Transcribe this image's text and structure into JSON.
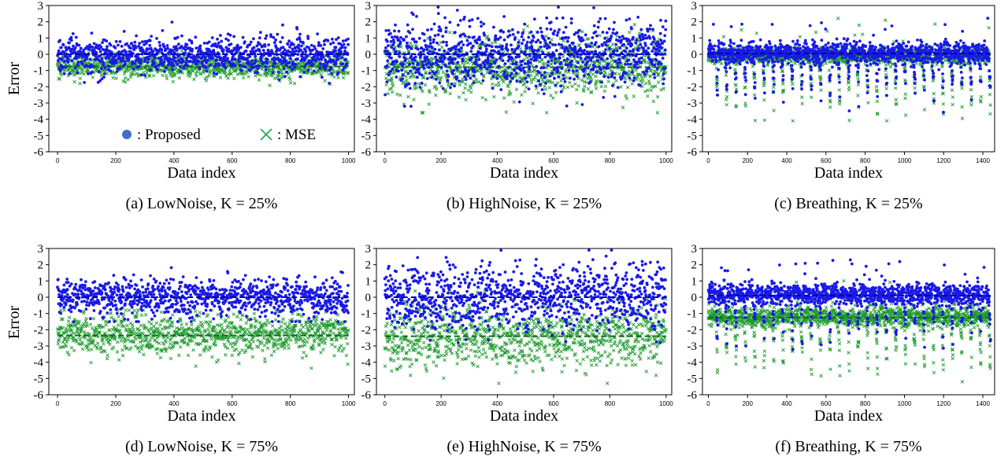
{
  "colors": {
    "proposed": "#1a1ae6",
    "mse": "#1e9a2e",
    "legend_dot": "#3f6fc8",
    "legend_x": "#1aa64a",
    "axis": "#000000"
  },
  "legend": {
    "proposed_label": ": Proposed",
    "mse_label": ": MSE"
  },
  "ylabel": "Error",
  "xlabel": "Data index",
  "chart_data": [
    {
      "id": "a",
      "type": "scatter",
      "title": "(a) LowNoise, K = 25%",
      "xlabel": "Data index",
      "ylabel": "Error",
      "xlim": [
        -30,
        1020
      ],
      "ylim": [
        -6,
        3
      ],
      "xticks": [
        0,
        200,
        400,
        600,
        800,
        1000
      ],
      "yticks": [
        -6,
        -5,
        -4,
        -3,
        -2,
        -1,
        0,
        1,
        2,
        3
      ],
      "pattern": "uniform",
      "n": 1000,
      "series": [
        {
          "name": "Proposed",
          "mean": 0.0,
          "spread": 0.55,
          "ymin": -2.5,
          "ymax": 2.8,
          "line": 0.0
        },
        {
          "name": "MSE",
          "mean": -0.75,
          "spread": 0.35,
          "ymin": -2.1,
          "ymax": 0.6,
          "line": -0.75
        }
      ]
    },
    {
      "id": "b",
      "type": "scatter",
      "title": "(b) HighNoise, K = 25%",
      "xlabel": "Data index",
      "ylabel": "Error",
      "xlim": [
        -30,
        1020
      ],
      "ylim": [
        -6,
        3
      ],
      "xticks": [
        0,
        200,
        400,
        600,
        800,
        1000
      ],
      "yticks": [
        -6,
        -5,
        -4,
        -3,
        -2,
        -1,
        0,
        1,
        2,
        3
      ],
      "pattern": "uniform",
      "n": 1000,
      "series": [
        {
          "name": "Proposed",
          "mean": 0.0,
          "spread": 1.0,
          "ymin": -3.2,
          "ymax": 2.9,
          "line": 0.0
        },
        {
          "name": "MSE",
          "mean": -0.8,
          "spread": 0.9,
          "ymin": -3.6,
          "ymax": 2.8,
          "line": -0.8
        }
      ]
    },
    {
      "id": "c",
      "type": "scatter",
      "title": "(c) Breathing, K = 25%",
      "xlabel": "Data index",
      "ylabel": "Error",
      "xlim": [
        -30,
        1460
      ],
      "ylim": [
        -6,
        3
      ],
      "xticks": [
        0,
        200,
        400,
        600,
        800,
        1000,
        1200,
        1400
      ],
      "yticks": [
        -6,
        -5,
        -4,
        -3,
        -2,
        -1,
        0,
        1,
        2,
        3
      ],
      "pattern": "breathing",
      "n": 1440,
      "series": [
        {
          "name": "Proposed",
          "mean": 0.1,
          "spread": 0.45,
          "ymin": -3.8,
          "ymax": 2.6,
          "line": 0.05
        },
        {
          "name": "MSE",
          "mean": -0.1,
          "spread": 0.35,
          "ymin": -4.1,
          "ymax": 2.8,
          "line": -0.05
        }
      ]
    },
    {
      "id": "d",
      "type": "scatter",
      "title": "(d) LowNoise, K = 75%",
      "xlabel": "Data index",
      "ylabel": "Error",
      "xlim": [
        -30,
        1020
      ],
      "ylim": [
        -6,
        3
      ],
      "xticks": [
        0,
        200,
        400,
        600,
        800,
        1000
      ],
      "yticks": [
        -6,
        -5,
        -4,
        -3,
        -2,
        -1,
        0,
        1,
        2,
        3
      ],
      "pattern": "uniform",
      "n": 1000,
      "series": [
        {
          "name": "Proposed",
          "mean": 0.0,
          "spread": 0.6,
          "ymin": -1.5,
          "ymax": 2.9,
          "line": 0.0
        },
        {
          "name": "MSE",
          "mean": -2.3,
          "spread": 0.65,
          "ymin": -4.8,
          "ymax": -0.8,
          "line": -2.35
        }
      ]
    },
    {
      "id": "e",
      "type": "scatter",
      "title": "(e) HighNoise, K = 75%",
      "xlabel": "Data index",
      "ylabel": "Error",
      "xlim": [
        -30,
        1020
      ],
      "ylim": [
        -6,
        3
      ],
      "xticks": [
        0,
        200,
        400,
        600,
        800,
        1000
      ],
      "yticks": [
        -6,
        -5,
        -4,
        -3,
        -2,
        -1,
        0,
        1,
        2,
        3
      ],
      "pattern": "uniform",
      "n": 1000,
      "series": [
        {
          "name": "Proposed",
          "mean": 0.0,
          "spread": 1.0,
          "ymin": -2.8,
          "ymax": 2.9,
          "line": 0.0
        },
        {
          "name": "MSE",
          "mean": -2.4,
          "spread": 0.95,
          "ymin": -5.3,
          "ymax": 0.6,
          "line": -2.4
        }
      ]
    },
    {
      "id": "f",
      "type": "scatter",
      "title": "(f) Breathing, K = 75%",
      "xlabel": "Data index",
      "ylabel": "Error",
      "xlim": [
        -30,
        1460
      ],
      "ylim": [
        -6,
        3
      ],
      "xticks": [
        0,
        200,
        400,
        600,
        800,
        1000,
        1200,
        1400
      ],
      "yticks": [
        -6,
        -5,
        -4,
        -3,
        -2,
        -1,
        0,
        1,
        2,
        3
      ],
      "pattern": "breathing",
      "n": 1440,
      "series": [
        {
          "name": "Proposed",
          "mean": 0.2,
          "spread": 0.45,
          "ymin": -4.0,
          "ymax": 3.0,
          "line": 0.1
        },
        {
          "name": "MSE",
          "mean": -1.2,
          "spread": 0.45,
          "ymin": -5.2,
          "ymax": 1.0,
          "line": -1.25
        }
      ]
    }
  ]
}
